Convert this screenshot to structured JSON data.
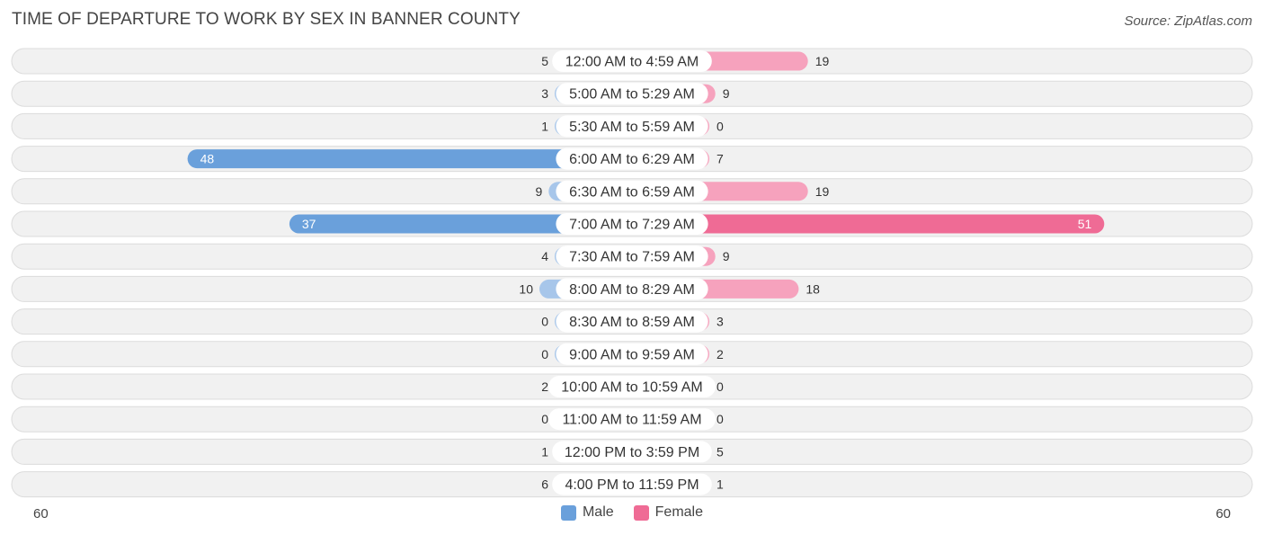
{
  "chart_data": {
    "type": "bar",
    "orientation": "horizontal-diverging",
    "title": "TIME OF DEPARTURE TO WORK BY SEX IN BANNER COUNTY",
    "source": "Source: ZipAtlas.com",
    "categories": [
      "12:00 AM to 4:59 AM",
      "5:00 AM to 5:29 AM",
      "5:30 AM to 5:59 AM",
      "6:00 AM to 6:29 AM",
      "6:30 AM to 6:59 AM",
      "7:00 AM to 7:29 AM",
      "7:30 AM to 7:59 AM",
      "8:00 AM to 8:29 AM",
      "8:30 AM to 8:59 AM",
      "9:00 AM to 9:59 AM",
      "10:00 AM to 10:59 AM",
      "11:00 AM to 11:59 AM",
      "12:00 PM to 3:59 PM",
      "4:00 PM to 11:59 PM"
    ],
    "series": [
      {
        "name": "Male",
        "values": [
          5,
          3,
          1,
          48,
          9,
          37,
          4,
          10,
          0,
          0,
          2,
          0,
          1,
          6
        ]
      },
      {
        "name": "Female",
        "values": [
          19,
          9,
          0,
          7,
          19,
          51,
          9,
          18,
          3,
          2,
          0,
          0,
          5,
          1
        ]
      }
    ],
    "axis_min_label": "60",
    "axis_max_label": "60",
    "xlim": [
      -60,
      60
    ],
    "legend_position": "bottom-center",
    "colors": {
      "male": "#a7c6ea",
      "male_strong": "#6aa0db",
      "female": "#f6a2bd",
      "female_strong": "#ef6b95",
      "row_bg": "#f1f1f1",
      "row_border": "#dcdcdc"
    }
  }
}
